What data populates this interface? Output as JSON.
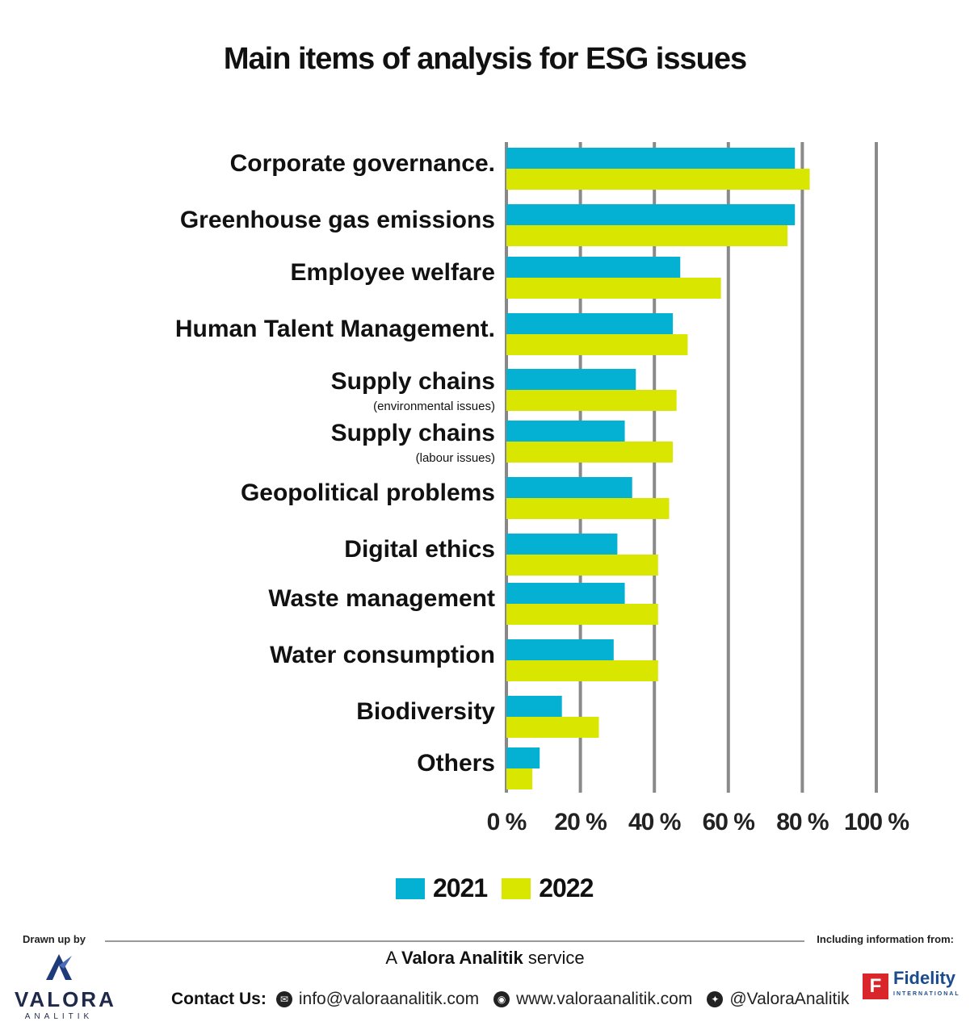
{
  "title": "Main items of analysis for ESG issues",
  "chart_data": {
    "type": "bar",
    "orientation": "horizontal",
    "title": "Main items of analysis for ESG issues",
    "categories": [
      {
        "label": "Corporate governance.",
        "sublabel": ""
      },
      {
        "label": "Greenhouse gas emissions",
        "sublabel": ""
      },
      {
        "label": "Employee welfare",
        "sublabel": ""
      },
      {
        "label": "Human Talent Management.",
        "sublabel": ""
      },
      {
        "label": "Supply chains",
        "sublabel": "(environmental issues)"
      },
      {
        "label": "Supply chains",
        "sublabel": "(labour issues)"
      },
      {
        "label": "Geopolitical problems",
        "sublabel": ""
      },
      {
        "label": "Digital ethics",
        "sublabel": ""
      },
      {
        "label": "Waste management",
        "sublabel": ""
      },
      {
        "label": "Water consumption",
        "sublabel": ""
      },
      {
        "label": "Biodiversity",
        "sublabel": ""
      },
      {
        "label": "Others",
        "sublabel": ""
      }
    ],
    "series": [
      {
        "name": "2021",
        "color": "#05b1d2",
        "values": [
          78,
          78,
          47,
          45,
          35,
          32,
          34,
          30,
          32,
          29,
          15,
          9
        ]
      },
      {
        "name": "2022",
        "color": "#d8e600",
        "values": [
          82,
          76,
          58,
          49,
          46,
          45,
          44,
          41,
          41,
          41,
          25,
          7
        ]
      }
    ],
    "xlim": [
      0,
      100
    ],
    "xticks": [
      "0 %",
      "20 %",
      "40 %",
      "60 %",
      "80 %",
      "100 %"
    ],
    "grid": true,
    "legend": "bottom-center"
  },
  "footer": {
    "drawn_by": "Drawn up by",
    "including": "Including information from:",
    "service_prefix": "A",
    "service_name": "Valora Analitik",
    "service_suffix": "service",
    "valora_name": "VALORA",
    "valora_sub": "ANALITIK",
    "contact_label": "Contact Us:",
    "email": "info@valoraanalitik.com",
    "website": "www.valoraanalitik.com",
    "twitter": "@ValoraAnalitik",
    "fidelity_name": "Fidelity",
    "fidelity_sub": "INTERNATIONAL",
    "fidelity_mark": "F"
  }
}
